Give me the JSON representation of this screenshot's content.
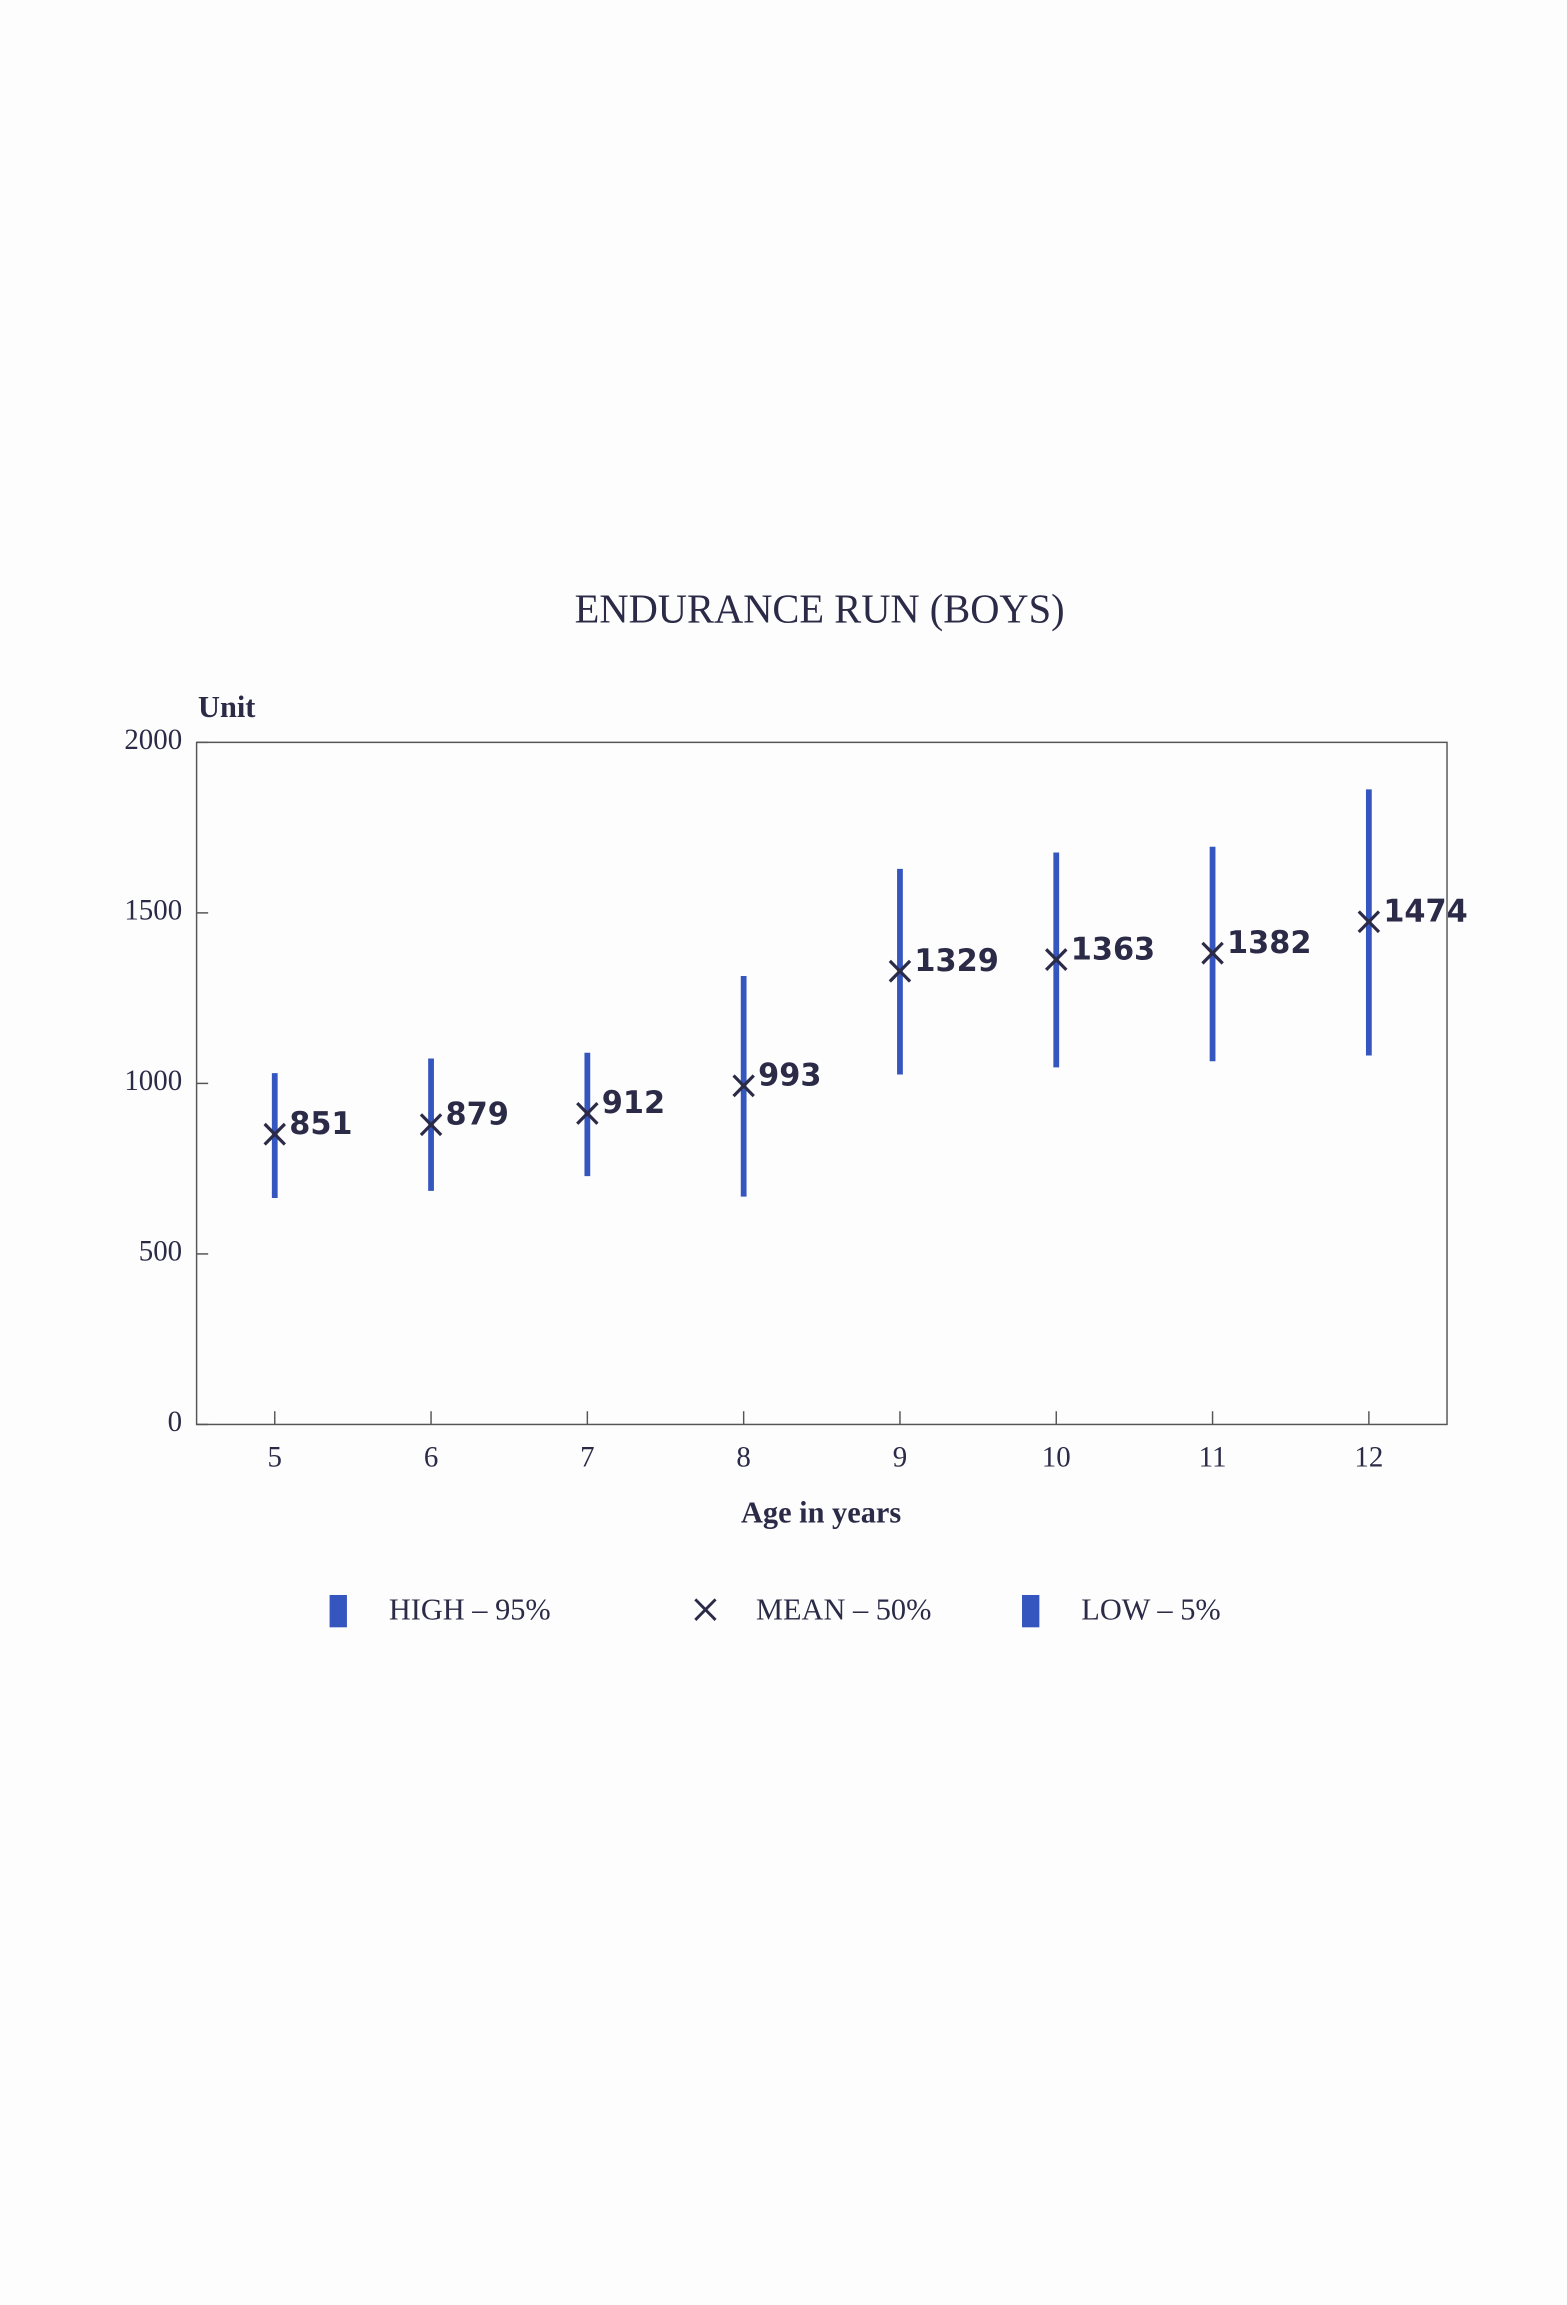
{
  "chart_data": {
    "type": "errorbar",
    "title": "ENDURANCE RUN   (BOYS)",
    "y_label": "Unit",
    "x_label": "Age in years",
    "x": [
      5,
      6,
      7,
      8,
      9,
      10,
      11,
      12
    ],
    "xlim": [
      4.5,
      12.5
    ],
    "xticks": [
      5,
      6,
      7,
      8,
      9,
      10,
      11,
      12
    ],
    "ylim": [
      0,
      2000
    ],
    "yticks": [
      0,
      500,
      1000,
      1500,
      2000
    ],
    "series": [
      {
        "name": "HIGH – 95%",
        "color": "#3556be",
        "values": [
          1030,
          1073,
          1090,
          1315,
          1629,
          1677,
          1694,
          1862
        ]
      },
      {
        "name": "MEAN – 50%",
        "color": "#2b2b48",
        "values": [
          851,
          879,
          912,
          993,
          1329,
          1363,
          1382,
          1474
        ]
      },
      {
        "name": "LOW – 5%",
        "color": "#3556be",
        "values": [
          664,
          685,
          728,
          668,
          1026,
          1047,
          1065,
          1082
        ]
      }
    ]
  }
}
